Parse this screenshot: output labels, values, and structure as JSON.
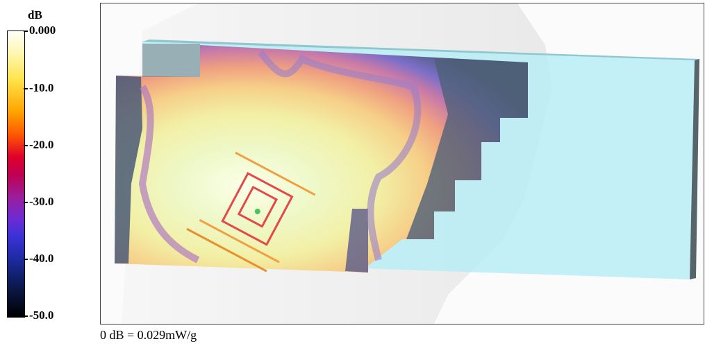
{
  "colorbar": {
    "unit": "dB",
    "ticks": [
      {
        "label": "0.000",
        "value": 0
      },
      {
        "label": "-10.0",
        "value": -10
      },
      {
        "label": "-20.0",
        "value": -20
      },
      {
        "label": "-30.0",
        "value": -30
      },
      {
        "label": "-40.0",
        "value": -40
      },
      {
        "label": "-50.0",
        "value": -50
      }
    ],
    "min": -50,
    "max": 0,
    "colors": [
      "#fffff8",
      "#ffe34a",
      "#ffa500",
      "#ff5a00",
      "#e0002b",
      "#9b1e9b",
      "#6b2bd4",
      "#3a32d8",
      "#1c2a9e",
      "#0c1848",
      "#000000"
    ]
  },
  "footer": {
    "reference": "0 dB = 0.029mW/g"
  }
}
